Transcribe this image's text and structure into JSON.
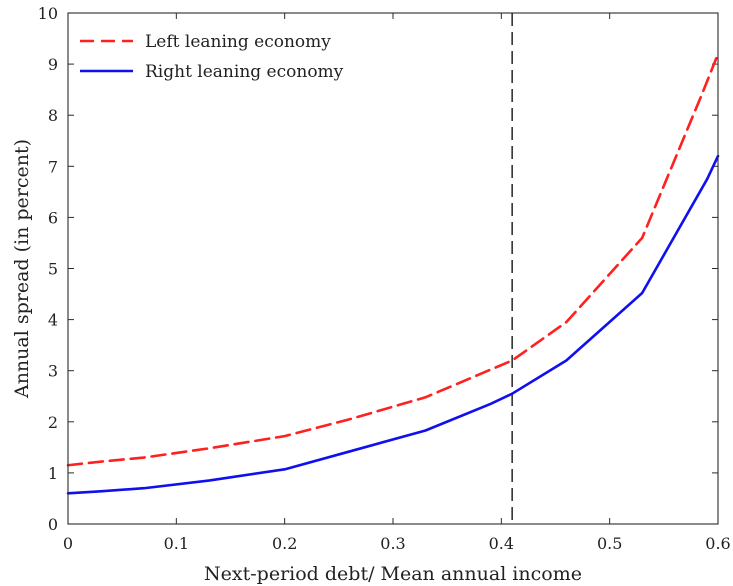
{
  "chart_data": {
    "type": "line",
    "xlabel": "Next-period debt/ Mean annual income",
    "ylabel": "Annual spread (in percent)",
    "xlim": [
      0,
      0.6
    ],
    "ylim": [
      0,
      10
    ],
    "x_ticks": [
      0,
      0.1,
      0.2,
      0.3,
      0.4,
      0.5,
      0.6
    ],
    "x_tick_labels": [
      "0",
      "0.1",
      "0.2",
      "0.3",
      "0.4",
      "0.5",
      "0.6"
    ],
    "y_ticks": [
      0,
      1,
      2,
      3,
      4,
      5,
      6,
      7,
      8,
      9,
      10
    ],
    "y_tick_labels": [
      "0",
      "1",
      "2",
      "3",
      "4",
      "5",
      "6",
      "7",
      "8",
      "9",
      "10"
    ],
    "grid": false,
    "legend_position": "top-left",
    "reference_line": {
      "x": 0.41,
      "style": "dashed",
      "color": "#333333"
    },
    "series": [
      {
        "name": "Left leaning economy",
        "color": "#ff2020",
        "style": "dashed",
        "x": [
          0,
          0.03,
          0.07,
          0.13,
          0.2,
          0.26,
          0.33,
          0.39,
          0.41,
          0.46,
          0.53,
          0.585,
          0.6
        ],
        "y": [
          1.15,
          1.22,
          1.3,
          1.48,
          1.72,
          2.05,
          2.48,
          3.02,
          3.2,
          3.95,
          5.6,
          8.4,
          9.2
        ]
      },
      {
        "name": "Right leaning economy",
        "color": "#1010ee",
        "style": "solid",
        "x": [
          0,
          0.03,
          0.07,
          0.13,
          0.2,
          0.26,
          0.33,
          0.39,
          0.41,
          0.46,
          0.53,
          0.59,
          0.6
        ],
        "y": [
          0.6,
          0.64,
          0.7,
          0.85,
          1.07,
          1.42,
          1.83,
          2.35,
          2.55,
          3.2,
          4.52,
          6.75,
          7.2
        ]
      }
    ]
  }
}
